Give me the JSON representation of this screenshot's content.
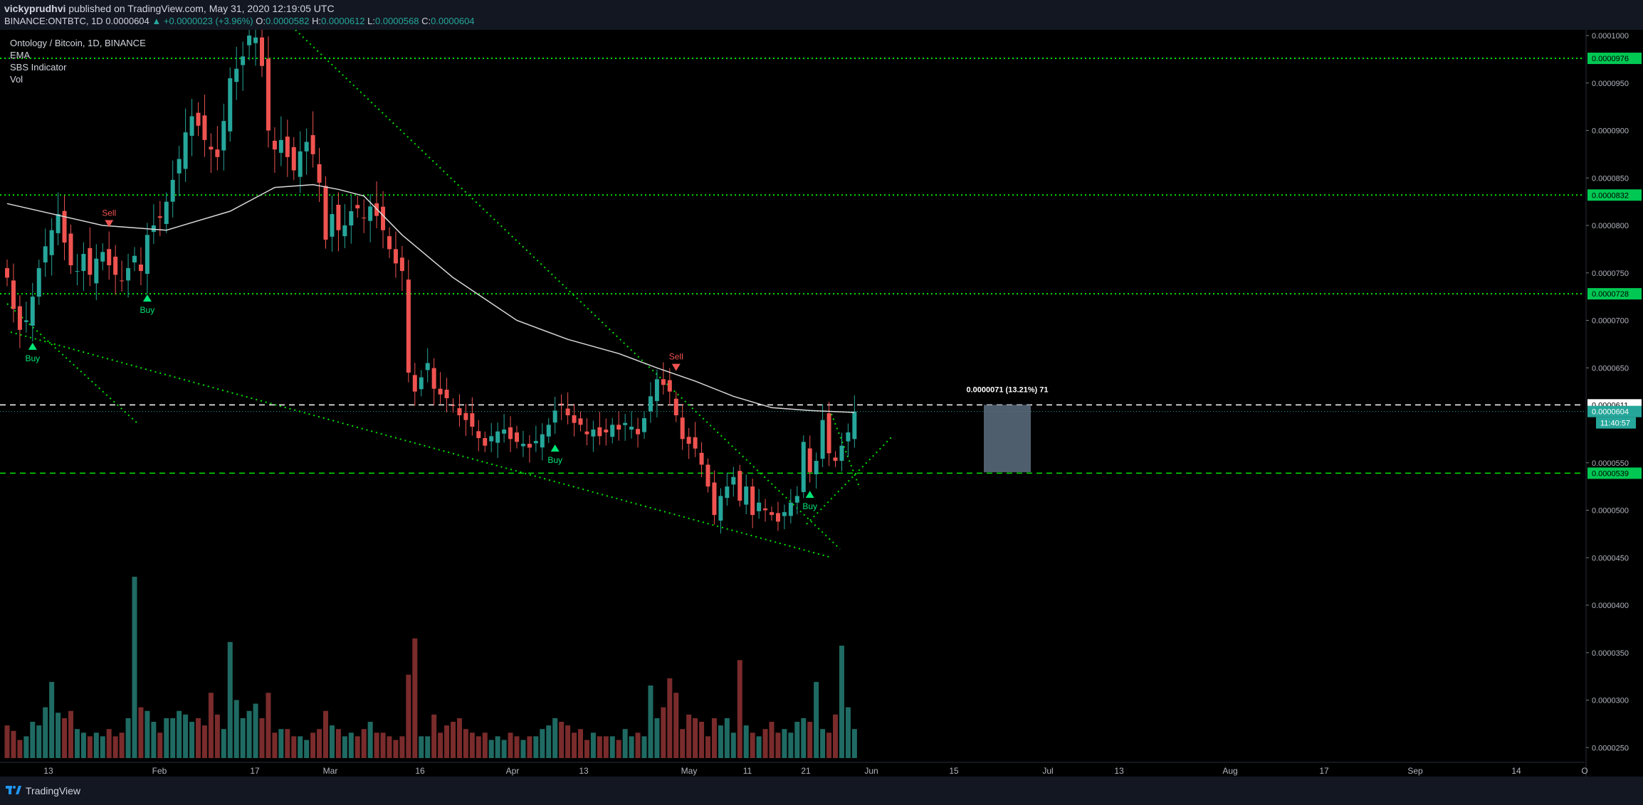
{
  "header": {
    "author": "vickyprudhvi",
    "published": "published on TradingView.com, May 31, 2020 12:19:05 UTC",
    "symbol": "BINANCE:ONTBTC, 1D",
    "last": "0.0000604",
    "change": "▲ +0.0000023 (+3.96%)",
    "open_label": "O:",
    "open": "0.0000582",
    "high_label": "H:",
    "high": "0.0000612",
    "low_label": "L:",
    "low": "0.0000568",
    "close_label": "C:",
    "close": "0.0000604"
  },
  "legend": {
    "title": "Ontology / Bitcoin, 1D, BINANCE",
    "items": [
      "EMA",
      "SBS Indicator",
      "Vol"
    ]
  },
  "footer": {
    "brand": "TradingView"
  },
  "colors": {
    "up": "#26a69a",
    "down": "#ef5350",
    "vol_up": "#1f6b63",
    "vol_down": "#7a2b2b",
    "level": "#00e600",
    "ema": "#d9d9d9",
    "background": "#000000",
    "panel": "#131722",
    "measure_box": "#5d6e80"
  },
  "chart_data": {
    "type": "candlestick",
    "y_unit": "BTC",
    "ylim": [
      2.4e-05,
      0.0001014
    ],
    "yticks": [
      "0.0001000",
      "0.0000950",
      "0.0000900",
      "0.0000850",
      "0.0000800",
      "0.0000750",
      "0.0000700",
      "0.0000650",
      "0.0000550",
      "0.0000500",
      "0.0000450",
      "0.0000400",
      "0.0000350",
      "0.0000300",
      "0.0000250"
    ],
    "xticks": [
      "13",
      "Feb",
      "17",
      "Mar",
      "16",
      "Apr",
      "13",
      "May",
      "11",
      "21",
      "Jun",
      "15",
      "Jul",
      "13",
      "Aug",
      "17",
      "Sep",
      "14",
      "O"
    ],
    "ohlc_closes": [
      7.45e-05,
      7.12e-05,
      6.9e-05,
      7e-05,
      7.25e-05,
      7.55e-05,
      7.78e-05,
      7.95e-05,
      8.12e-05,
      7.82e-05,
      7.58e-05,
      7.52e-05,
      7.7e-05,
      7.48e-05,
      7.65e-05,
      7.72e-05,
      7.58e-05,
      7.48e-05,
      7.42e-05,
      7.55e-05,
      7.68e-05,
      7.52e-05,
      7.9e-05,
      8e-05,
      8.08e-05,
      8.25e-05,
      8.48e-05,
      8.7e-05,
      8.98e-05,
      9.15e-05,
      9.05e-05,
      8.9e-05,
      8.8e-05,
      8.72e-05,
      9.1e-05,
      9.55e-05,
      9.65e-05,
      9.78e-05,
      0.0001,
      9.98e-05,
      9.68e-05,
      9e-05,
      8.8e-05,
      8.9e-05,
      8.72e-05,
      8.58e-05,
      8.78e-05,
      8.88e-05,
      8.75e-05,
      8.45e-05,
      7.85e-05,
      8.12e-05,
      7.95e-05,
      8e-05,
      8.15e-05,
      8.18e-05,
      8.08e-05,
      8.2e-05,
      8.1e-05,
      7.95e-05,
      7.75e-05,
      7.6e-05,
      7.52e-05,
      6.45e-05,
      6.25e-05,
      6.4e-05,
      6.55e-05,
      6.28e-05,
      6.22e-05,
      6.18e-05,
      6.1e-05,
      6e-05,
      5.95e-05,
      5.88e-05,
      5.76e-05,
      5.68e-05,
      5.78e-05,
      5.83e-05,
      5.85e-05,
      5.75e-05,
      5.72e-05,
      5.7e-05,
      5.66e-05,
      5.73e-05,
      5.8e-05,
      5.9e-05,
      6.05e-05,
      6.12e-05,
      6e-05,
      5.92e-05,
      5.9e-05,
      5.8e-05,
      5.85e-05,
      5.78e-05,
      5.82e-05,
      5.9e-05,
      5.85e-05,
      5.92e-05,
      5.88e-05,
      5.8e-05,
      5.97e-05,
      6.2e-05,
      6.38e-05,
      6.32e-05,
      6.25e-05,
      6e-05,
      5.75e-05,
      5.7e-05,
      5.65e-05,
      5.48e-05,
      5.25e-05,
      4.95e-05,
      5.15e-05,
      5.25e-05,
      5.35e-05,
      5.1e-05,
      5.25e-05,
      4.95e-05,
      5.08e-05,
      5e-05,
      4.95e-05,
      4.88e-05,
      4.98e-05,
      5.08e-05,
      5.15e-05,
      5.72e-05,
      5.4e-05,
      5.52e-05,
      5.95e-05,
      5.6e-05,
      5.52e-05,
      5.68e-05,
      5.82e-05,
      6.04e-05
    ],
    "ema_line": [
      [
        0,
        8.23e-05
      ],
      [
        15,
        8e-05
      ],
      [
        25,
        7.95e-05
      ],
      [
        35,
        8.15e-05
      ],
      [
        42,
        8.4e-05
      ],
      [
        48,
        8.43e-05
      ],
      [
        52,
        8.38e-05
      ],
      [
        56,
        8.31e-05
      ],
      [
        62,
        7.9e-05
      ],
      [
        70,
        7.45e-05
      ],
      [
        80,
        7e-05
      ],
      [
        88,
        6.8e-05
      ],
      [
        96,
        6.65e-05
      ],
      [
        102,
        6.5e-05
      ],
      [
        108,
        6.36e-05
      ],
      [
        114,
        6.2e-05
      ],
      [
        120,
        6.08e-05
      ],
      [
        126,
        6.05e-05
      ],
      [
        133,
        6.03e-05
      ]
    ],
    "horizontal_levels": [
      {
        "value": 9.76e-05,
        "label": "0.0000976",
        "style": "dotted"
      },
      {
        "value": 8.32e-05,
        "label": "0.0000832",
        "style": "dotted"
      },
      {
        "value": 7.28e-05,
        "label": "0.0000728",
        "style": "dotted"
      },
      {
        "value": 6.11e-05,
        "label": "0.0000611",
        "style": "dashed"
      },
      {
        "value": 6.04e-05,
        "label": "0.0000604",
        "style": "dotted-thin"
      },
      {
        "value": 5.39e-05,
        "label": "0.0000539",
        "style": "dashed"
      }
    ],
    "countdown_label": "11:40:57",
    "measure": {
      "label": "0.0000071 (13.21%) 71",
      "from": 5.4e-05,
      "to": 6.11e-05
    },
    "signals": [
      {
        "type": "buy",
        "label": "Buy",
        "index": 4
      },
      {
        "type": "sell",
        "label": "Sell",
        "index": 16
      },
      {
        "type": "buy",
        "label": "Buy",
        "index": 22
      },
      {
        "type": "buy",
        "label": "Buy",
        "index": 86
      },
      {
        "type": "sell",
        "label": "Sell",
        "index": 105
      },
      {
        "type": "buy",
        "label": "Buy",
        "index": 126
      }
    ],
    "volume_relative": [
      0.18,
      0.15,
      0.1,
      0.12,
      0.2,
      0.18,
      0.28,
      0.42,
      0.25,
      0.22,
      0.26,
      0.16,
      0.14,
      0.12,
      0.14,
      0.12,
      0.16,
      0.12,
      0.14,
      0.22,
      1.0,
      0.28,
      0.26,
      0.2,
      0.14,
      0.22,
      0.22,
      0.26,
      0.24,
      0.2,
      0.22,
      0.18,
      0.36,
      0.24,
      0.16,
      0.64,
      0.32,
      0.22,
      0.26,
      0.3,
      0.22,
      0.36,
      0.14,
      0.16,
      0.16,
      0.12,
      0.12,
      0.1,
      0.14,
      0.16,
      0.26,
      0.18,
      0.16,
      0.12,
      0.14,
      0.12,
      0.16,
      0.2,
      0.14,
      0.14,
      0.12,
      0.1,
      0.12,
      0.46,
      0.66,
      0.12,
      0.12,
      0.24,
      0.14,
      0.18,
      0.2,
      0.22,
      0.16,
      0.14,
      0.12,
      0.14,
      0.1,
      0.12,
      0.1,
      0.14,
      0.12,
      0.1,
      0.12,
      0.12,
      0.16,
      0.18,
      0.22,
      0.2,
      0.18,
      0.14,
      0.16,
      0.1,
      0.14,
      0.12,
      0.12,
      0.12,
      0.1,
      0.16,
      0.12,
      0.14,
      0.12,
      0.4,
      0.22,
      0.28,
      0.44,
      0.36,
      0.16,
      0.24,
      0.22,
      0.2,
      0.12,
      0.22,
      0.18,
      0.22,
      0.14,
      0.54,
      0.18,
      0.14,
      0.12,
      0.16,
      0.2,
      0.14,
      0.16,
      0.14,
      0.2,
      0.22,
      0.2,
      0.42,
      0.16,
      0.14,
      0.24,
      0.62,
      0.28,
      0.16,
      0.48,
      0.16
    ]
  }
}
